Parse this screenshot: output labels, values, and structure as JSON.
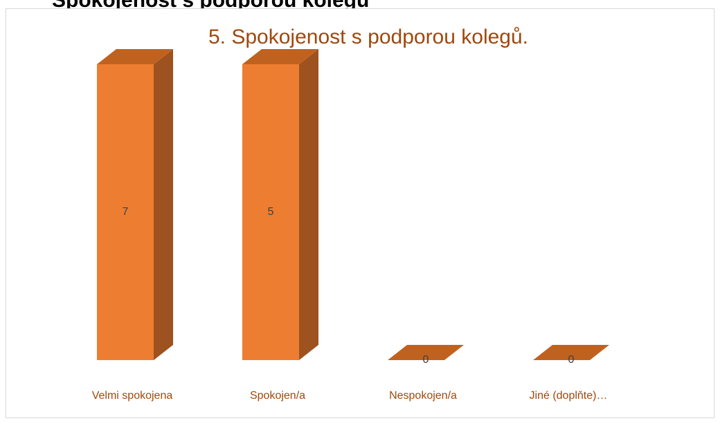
{
  "heading": "Spokojenost s podporou kolegů",
  "chart_data": {
    "type": "bar3d",
    "title": "5. Spokojenost s podporou kolegů.",
    "categories": [
      "Velmi spokojena",
      "Spokojen/a",
      "Nespokojen/a",
      "Jiné (doplňte)…"
    ],
    "values": [
      7,
      5,
      0,
      0
    ],
    "color": "#ed7d31",
    "ylim": [
      0,
      5
    ]
  }
}
